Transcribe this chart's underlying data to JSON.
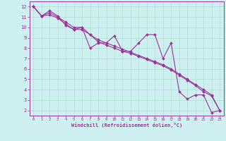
{
  "title": "",
  "xlabel": "Windchill (Refroidissement éolien,°C)",
  "ylabel": "",
  "bg_color": "#cff0f0",
  "line_color": "#993399",
  "grid_color": "#aaddcc",
  "xlim": [
    -0.5,
    23.5
  ],
  "ylim": [
    1.5,
    12.5
  ],
  "xticks": [
    0,
    1,
    2,
    3,
    4,
    5,
    6,
    7,
    8,
    9,
    10,
    11,
    12,
    13,
    14,
    15,
    16,
    17,
    18,
    19,
    20,
    21,
    22,
    23
  ],
  "yticks": [
    2,
    3,
    4,
    5,
    6,
    7,
    8,
    9,
    10,
    11,
    12
  ],
  "series1_x": [
    0,
    1,
    2,
    3,
    4,
    5,
    6,
    7,
    8,
    9,
    10,
    11,
    12,
    13,
    14,
    15,
    16,
    17,
    18,
    19,
    20,
    21,
    22,
    23
  ],
  "series1_y": [
    12.0,
    11.1,
    11.6,
    11.1,
    10.2,
    9.8,
    10.0,
    8.0,
    8.5,
    8.5,
    9.2,
    7.7,
    7.7,
    8.5,
    9.3,
    9.3,
    7.0,
    8.5,
    3.8,
    3.1,
    3.5,
    3.5,
    1.8,
    2.0
  ],
  "series2_x": [
    0,
    1,
    2,
    3,
    4,
    5,
    6,
    7,
    8,
    9,
    10,
    11,
    12,
    13,
    14,
    15,
    16,
    17,
    18,
    19,
    20,
    21,
    22,
    23
  ],
  "series2_y": [
    12.0,
    11.1,
    11.4,
    11.0,
    10.5,
    10.0,
    10.0,
    9.3,
    8.8,
    8.5,
    8.2,
    7.9,
    7.6,
    7.3,
    7.0,
    6.7,
    6.4,
    6.0,
    5.5,
    5.0,
    4.5,
    4.0,
    3.5,
    2.0
  ],
  "series3_x": [
    0,
    1,
    2,
    3,
    4,
    5,
    6,
    7,
    8,
    9,
    10,
    11,
    12,
    13,
    14,
    15,
    16,
    17,
    18,
    19,
    20,
    21,
    22,
    23
  ],
  "series3_y": [
    12.0,
    11.1,
    11.2,
    10.9,
    10.3,
    9.8,
    9.8,
    9.3,
    8.6,
    8.3,
    8.0,
    7.7,
    7.5,
    7.2,
    6.9,
    6.6,
    6.3,
    5.9,
    5.4,
    4.9,
    4.4,
    3.8,
    3.4,
    2.0
  ]
}
